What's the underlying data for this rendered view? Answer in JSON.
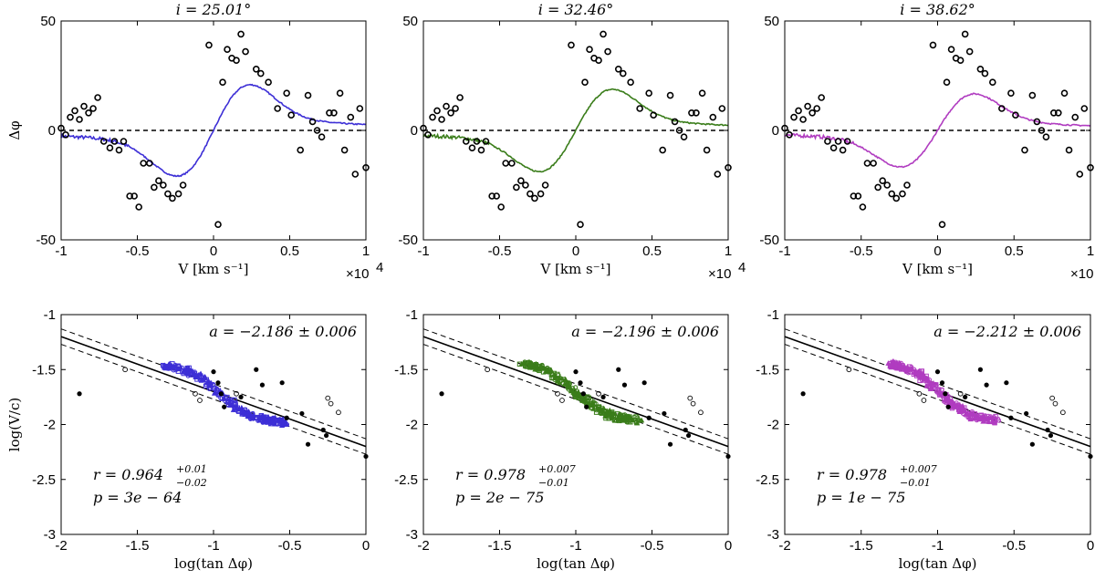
{
  "chart_data": [
    {
      "type": "line",
      "panel": "top-left",
      "title": "i = 25.01°",
      "xlabel": "V [km s⁻¹]",
      "ylabel": "Δφ",
      "x_multiplier": "×10",
      "x_multiplier_exp": "4",
      "xlim": [
        -1,
        1
      ],
      "ylim": [
        -50,
        50
      ],
      "xticks": [
        "-1",
        "-0.5",
        "0",
        "0.5",
        "1"
      ],
      "yticks": [
        "-50",
        "0",
        "50"
      ],
      "color": "#3d2fd6",
      "model_curve": {
        "amp": 20
      },
      "observed_points": [
        [
          -1.0,
          1
        ],
        [
          -0.97,
          -2
        ],
        [
          -0.94,
          6
        ],
        [
          -0.91,
          9
        ],
        [
          -0.88,
          5
        ],
        [
          -0.85,
          11
        ],
        [
          -0.82,
          8
        ],
        [
          -0.79,
          10
        ],
        [
          -0.76,
          15
        ],
        [
          -0.72,
          -5
        ],
        [
          -0.68,
          -8
        ],
        [
          -0.65,
          -5
        ],
        [
          -0.62,
          -9
        ],
        [
          -0.59,
          -5
        ],
        [
          -0.55,
          -30
        ],
        [
          -0.52,
          -30
        ],
        [
          -0.49,
          -35
        ],
        [
          -0.46,
          -15
        ],
        [
          -0.42,
          -15
        ],
        [
          -0.39,
          -26
        ],
        [
          -0.36,
          -23
        ],
        [
          -0.33,
          -25
        ],
        [
          -0.3,
          -29
        ],
        [
          -0.27,
          -31
        ],
        [
          -0.23,
          -29
        ],
        [
          -0.2,
          -25
        ],
        [
          -0.03,
          39
        ],
        [
          0.03,
          -43
        ],
        [
          0.06,
          22
        ],
        [
          0.09,
          37
        ],
        [
          0.12,
          33
        ],
        [
          0.15,
          32
        ],
        [
          0.18,
          44
        ],
        [
          0.21,
          36
        ],
        [
          0.28,
          28
        ],
        [
          0.31,
          26
        ],
        [
          0.36,
          22
        ],
        [
          0.42,
          10
        ],
        [
          0.48,
          17
        ],
        [
          0.51,
          7
        ],
        [
          0.57,
          -9
        ],
        [
          0.62,
          16
        ],
        [
          0.65,
          4
        ],
        [
          0.68,
          0
        ],
        [
          0.71,
          -3
        ],
        [
          0.76,
          8
        ],
        [
          0.79,
          8
        ],
        [
          0.83,
          17
        ],
        [
          0.86,
          -9
        ],
        [
          0.9,
          6
        ],
        [
          0.93,
          -20
        ],
        [
          0.96,
          10
        ],
        [
          1.0,
          -17
        ]
      ]
    },
    {
      "type": "line",
      "panel": "top-middle",
      "title": "i = 32.46°",
      "xlabel": "V [km s⁻¹]",
      "ylabel": "",
      "x_multiplier": "×10",
      "x_multiplier_exp": "4",
      "xlim": [
        -1,
        1
      ],
      "ylim": [
        -50,
        50
      ],
      "xticks": [
        "-1",
        "-0.5",
        "0",
        "0.5",
        "1"
      ],
      "yticks": [
        "-50",
        "0",
        "50"
      ],
      "color": "#3a7d1a",
      "model_curve": {
        "amp": 18
      },
      "observed_points": [
        [
          -1.0,
          1
        ],
        [
          -0.97,
          -2
        ],
        [
          -0.94,
          6
        ],
        [
          -0.91,
          9
        ],
        [
          -0.88,
          5
        ],
        [
          -0.85,
          11
        ],
        [
          -0.82,
          8
        ],
        [
          -0.79,
          10
        ],
        [
          -0.76,
          15
        ],
        [
          -0.72,
          -5
        ],
        [
          -0.68,
          -8
        ],
        [
          -0.65,
          -5
        ],
        [
          -0.62,
          -9
        ],
        [
          -0.59,
          -5
        ],
        [
          -0.55,
          -30
        ],
        [
          -0.52,
          -30
        ],
        [
          -0.49,
          -35
        ],
        [
          -0.46,
          -15
        ],
        [
          -0.42,
          -15
        ],
        [
          -0.39,
          -26
        ],
        [
          -0.36,
          -23
        ],
        [
          -0.33,
          -25
        ],
        [
          -0.3,
          -29
        ],
        [
          -0.27,
          -31
        ],
        [
          -0.23,
          -29
        ],
        [
          -0.2,
          -25
        ],
        [
          -0.03,
          39
        ],
        [
          0.03,
          -43
        ],
        [
          0.06,
          22
        ],
        [
          0.09,
          37
        ],
        [
          0.12,
          33
        ],
        [
          0.15,
          32
        ],
        [
          0.18,
          44
        ],
        [
          0.21,
          36
        ],
        [
          0.28,
          28
        ],
        [
          0.31,
          26
        ],
        [
          0.36,
          22
        ],
        [
          0.42,
          10
        ],
        [
          0.48,
          17
        ],
        [
          0.51,
          7
        ],
        [
          0.57,
          -9
        ],
        [
          0.62,
          16
        ],
        [
          0.65,
          4
        ],
        [
          0.68,
          0
        ],
        [
          0.71,
          -3
        ],
        [
          0.76,
          8
        ],
        [
          0.79,
          8
        ],
        [
          0.83,
          17
        ],
        [
          0.86,
          -9
        ],
        [
          0.9,
          6
        ],
        [
          0.93,
          -20
        ],
        [
          0.96,
          10
        ],
        [
          1.0,
          -17
        ]
      ]
    },
    {
      "type": "line",
      "panel": "top-right",
      "title": "i = 38.62°",
      "xlabel": "V [km s⁻¹]",
      "ylabel": "",
      "x_multiplier": "×10",
      "x_multiplier_exp": "4",
      "xlim": [
        -1,
        1
      ],
      "ylim": [
        -50,
        50
      ],
      "xticks": [
        "-1",
        "-0.5",
        "0",
        "0.5",
        "1"
      ],
      "yticks": [
        "-50",
        "0",
        "50"
      ],
      "color": "#b03cc0",
      "model_curve": {
        "amp": 16
      },
      "observed_points": [
        [
          -1.0,
          1
        ],
        [
          -0.97,
          -2
        ],
        [
          -0.94,
          6
        ],
        [
          -0.91,
          9
        ],
        [
          -0.88,
          5
        ],
        [
          -0.85,
          11
        ],
        [
          -0.82,
          8
        ],
        [
          -0.79,
          10
        ],
        [
          -0.76,
          15
        ],
        [
          -0.72,
          -5
        ],
        [
          -0.68,
          -8
        ],
        [
          -0.65,
          -5
        ],
        [
          -0.62,
          -9
        ],
        [
          -0.59,
          -5
        ],
        [
          -0.55,
          -30
        ],
        [
          -0.52,
          -30
        ],
        [
          -0.49,
          -35
        ],
        [
          -0.46,
          -15
        ],
        [
          -0.42,
          -15
        ],
        [
          -0.39,
          -26
        ],
        [
          -0.36,
          -23
        ],
        [
          -0.33,
          -25
        ],
        [
          -0.3,
          -29
        ],
        [
          -0.27,
          -31
        ],
        [
          -0.23,
          -29
        ],
        [
          -0.2,
          -25
        ],
        [
          -0.03,
          39
        ],
        [
          0.03,
          -43
        ],
        [
          0.06,
          22
        ],
        [
          0.09,
          37
        ],
        [
          0.12,
          33
        ],
        [
          0.15,
          32
        ],
        [
          0.18,
          44
        ],
        [
          0.21,
          36
        ],
        [
          0.28,
          28
        ],
        [
          0.31,
          26
        ],
        [
          0.36,
          22
        ],
        [
          0.42,
          10
        ],
        [
          0.48,
          17
        ],
        [
          0.51,
          7
        ],
        [
          0.57,
          -9
        ],
        [
          0.62,
          16
        ],
        [
          0.65,
          4
        ],
        [
          0.68,
          0
        ],
        [
          0.71,
          -3
        ],
        [
          0.76,
          8
        ],
        [
          0.79,
          8
        ],
        [
          0.83,
          17
        ],
        [
          0.86,
          -9
        ],
        [
          0.9,
          6
        ],
        [
          0.93,
          -20
        ],
        [
          0.96,
          10
        ],
        [
          1.0,
          -17
        ]
      ]
    },
    {
      "type": "scatter",
      "panel": "bottom-left",
      "xlabel": "log(tan Δφ)",
      "ylabel": "log(V/c)",
      "xlim": [
        -2,
        0
      ],
      "ylim": [
        -3,
        -1
      ],
      "xticks": [
        "-2",
        "-1.5",
        "-1",
        "-0.5",
        "0"
      ],
      "yticks": [
        "-1",
        "-1.5",
        "-2",
        "-2.5",
        "-3"
      ],
      "color": "#3d2fd6",
      "slope_text": "a = −2.186 ± 0.006",
      "r_text": "r = 0.964",
      "r_sup": "+0.01",
      "r_sub": "−0.02",
      "p_text": "p = 3e − 64",
      "fit": {
        "slope": -0.5,
        "intercept": -2.2,
        "band": 0.07
      },
      "cluster": {
        "x": [
          -1.32,
          -0.52
        ],
        "y": [
          -1.47,
          -2.02
        ]
      },
      "solid_points": [
        [
          -1.88,
          -1.72
        ],
        [
          -1.0,
          -1.52
        ],
        [
          -0.97,
          -1.62
        ],
        [
          -0.95,
          -1.72
        ],
        [
          -0.93,
          -1.84
        ],
        [
          -0.82,
          -1.75
        ],
        [
          -0.72,
          -1.5
        ],
        [
          -0.68,
          -1.64
        ],
        [
          -0.55,
          -1.62
        ],
        [
          -0.52,
          -1.94
        ],
        [
          -0.42,
          -1.9
        ],
        [
          -0.38,
          -2.18
        ],
        [
          -0.28,
          -2.05
        ],
        [
          -0.26,
          -2.1
        ],
        [
          0.0,
          -2.29
        ]
      ],
      "open_points": [
        [
          -1.58,
          -1.5
        ],
        [
          -1.12,
          -1.72
        ],
        [
          -1.09,
          -1.78
        ],
        [
          -0.85,
          -1.72
        ],
        [
          -0.25,
          -1.76
        ],
        [
          -0.23,
          -1.81
        ],
        [
          -0.18,
          -1.89
        ]
      ]
    },
    {
      "type": "scatter",
      "panel": "bottom-middle",
      "xlabel": "log(tan Δφ)",
      "ylabel": "",
      "xlim": [
        -2,
        0
      ],
      "ylim": [
        -3,
        -1
      ],
      "xticks": [
        "-2",
        "-1.5",
        "-1",
        "-0.5",
        "0"
      ],
      "yticks": [
        "-1",
        "-1.5",
        "-2",
        "-2.5",
        "-3"
      ],
      "color": "#3a7d1a",
      "slope_text": "a = −2.196 ± 0.006",
      "r_text": "r = 0.978",
      "r_sup": "+0.007",
      "r_sub": "−0.01",
      "p_text": "p = 2e − 75",
      "fit": {
        "slope": -0.5,
        "intercept": -2.2,
        "band": 0.07
      },
      "cluster": {
        "x": [
          -1.36,
          -0.58
        ],
        "y": [
          -1.45,
          -2.0
        ]
      },
      "solid_points": [
        [
          -1.88,
          -1.72
        ],
        [
          -1.0,
          -1.52
        ],
        [
          -0.97,
          -1.62
        ],
        [
          -0.95,
          -1.72
        ],
        [
          -0.93,
          -1.84
        ],
        [
          -0.82,
          -1.75
        ],
        [
          -0.72,
          -1.5
        ],
        [
          -0.68,
          -1.64
        ],
        [
          -0.55,
          -1.62
        ],
        [
          -0.52,
          -1.94
        ],
        [
          -0.42,
          -1.9
        ],
        [
          -0.38,
          -2.18
        ],
        [
          -0.28,
          -2.05
        ],
        [
          -0.26,
          -2.1
        ],
        [
          0.0,
          -2.29
        ]
      ],
      "open_points": [
        [
          -1.58,
          -1.5
        ],
        [
          -1.12,
          -1.72
        ],
        [
          -1.09,
          -1.78
        ],
        [
          -0.85,
          -1.72
        ],
        [
          -0.25,
          -1.76
        ],
        [
          -0.23,
          -1.81
        ],
        [
          -0.18,
          -1.89
        ]
      ]
    },
    {
      "type": "scatter",
      "panel": "bottom-right",
      "xlabel": "log(tan Δφ)",
      "ylabel": "",
      "xlim": [
        -2,
        0
      ],
      "ylim": [
        -3,
        -1
      ],
      "xticks": [
        "-2",
        "-1.5",
        "-1",
        "-0.5",
        "0"
      ],
      "yticks": [
        "-1",
        "-1.5",
        "-2",
        "-2.5",
        "-3"
      ],
      "color": "#b03cc0",
      "slope_text": "a = −2.212 ± 0.006",
      "r_text": "r = 0.978",
      "r_sup": "+0.007",
      "r_sub": "−0.01",
      "p_text": "p = 1e − 75",
      "fit": {
        "slope": -0.5,
        "intercept": -2.2,
        "band": 0.07
      },
      "cluster": {
        "x": [
          -1.32,
          -0.6
        ],
        "y": [
          -1.45,
          -2.0
        ]
      },
      "solid_points": [
        [
          -1.88,
          -1.72
        ],
        [
          -1.0,
          -1.52
        ],
        [
          -0.97,
          -1.62
        ],
        [
          -0.95,
          -1.72
        ],
        [
          -0.93,
          -1.84
        ],
        [
          -0.82,
          -1.75
        ],
        [
          -0.72,
          -1.5
        ],
        [
          -0.68,
          -1.64
        ],
        [
          -0.55,
          -1.62
        ],
        [
          -0.52,
          -1.94
        ],
        [
          -0.42,
          -1.9
        ],
        [
          -0.38,
          -2.18
        ],
        [
          -0.28,
          -2.05
        ],
        [
          -0.26,
          -2.1
        ],
        [
          0.0,
          -2.29
        ]
      ],
      "open_points": [
        [
          -1.58,
          -1.5
        ],
        [
          -1.12,
          -1.72
        ],
        [
          -1.09,
          -1.78
        ],
        [
          -0.85,
          -1.72
        ],
        [
          -0.25,
          -1.76
        ],
        [
          -0.23,
          -1.81
        ],
        [
          -0.18,
          -1.89
        ]
      ]
    }
  ]
}
